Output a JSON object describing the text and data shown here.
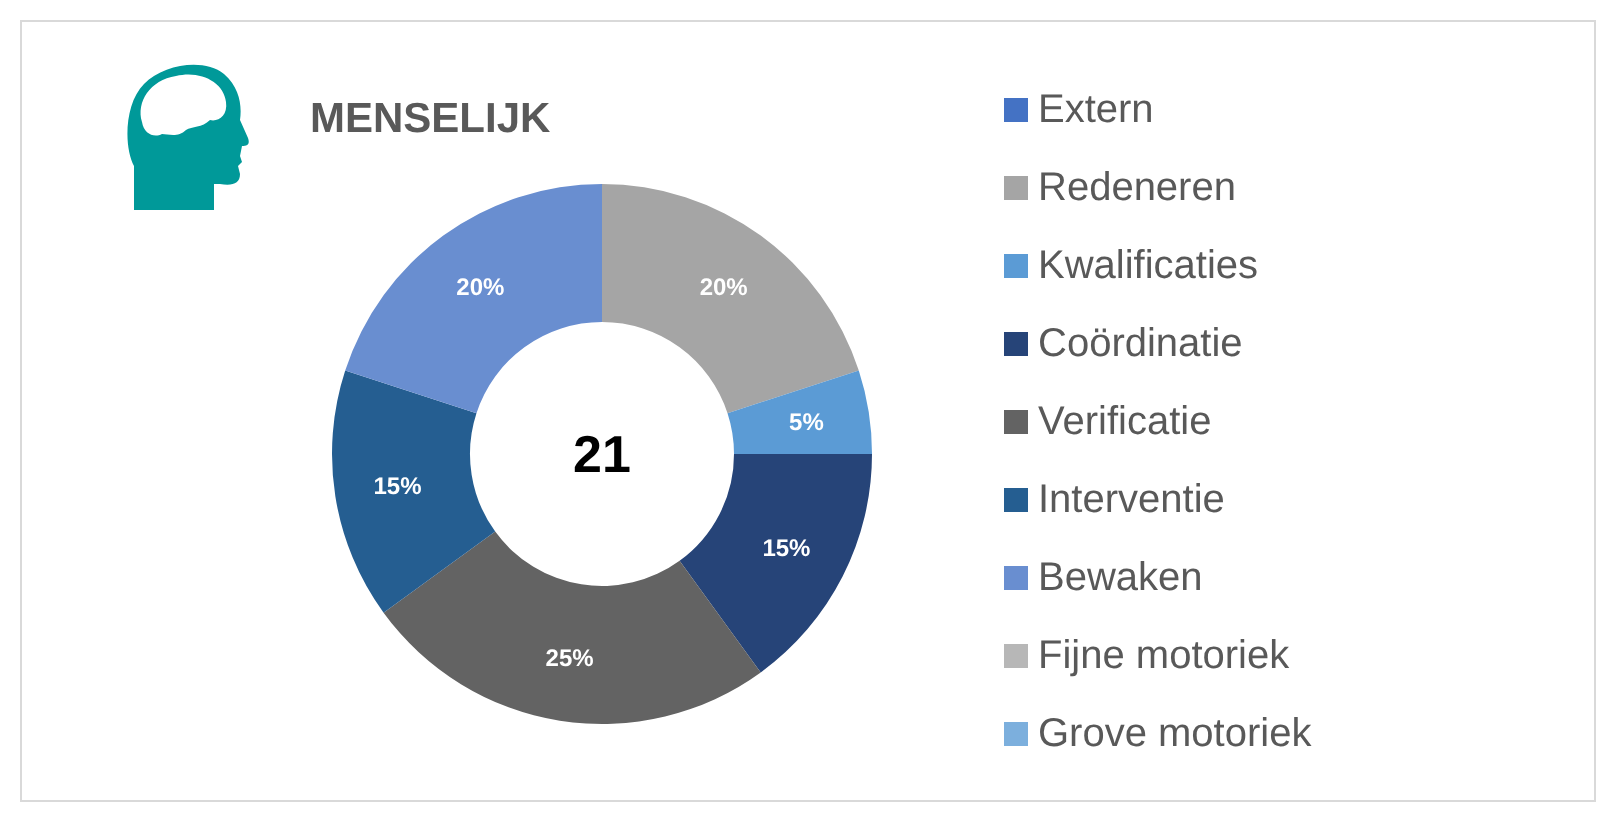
{
  "chart_data": {
    "type": "donut",
    "title": "MENSELIJK",
    "categories": [
      "Extern",
      "Redeneren",
      "Kwalificaties",
      "Coördinatie",
      "Verificatie",
      "Interventie",
      "Bewaken",
      "Fijne motoriek",
      "Grove motoriek"
    ],
    "values": [
      0,
      20,
      5,
      15,
      25,
      15,
      20,
      0,
      0
    ],
    "colors": [
      "#4472c4",
      "#a5a5a5",
      "#5b9bd5",
      "#264478",
      "#636363",
      "#255e91",
      "#698ed0",
      "#b7b7b7",
      "#7cafdd"
    ],
    "value_labels": [
      null,
      "20%",
      "5%",
      "15%",
      "25%",
      "15%",
      "20%",
      null,
      null
    ],
    "annotations": [
      "21"
    ],
    "legend": "right"
  }
}
